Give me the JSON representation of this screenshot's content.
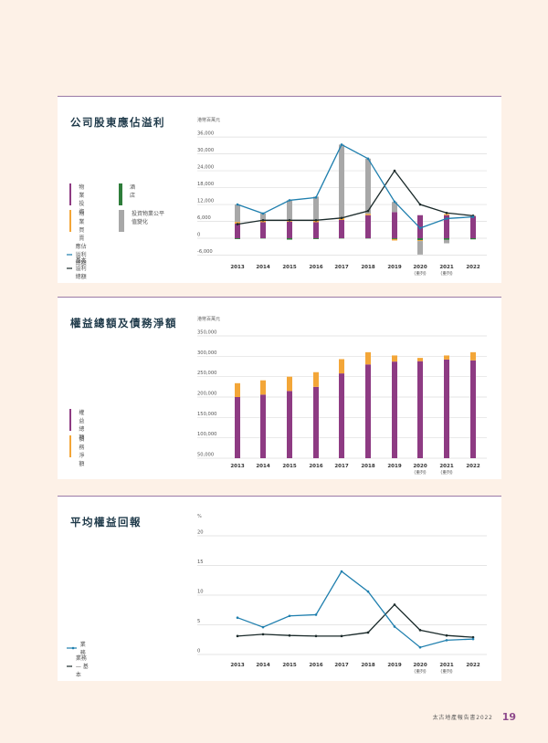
{
  "footer": {
    "report_name": "太古地產報告書2022",
    "page_number": "19"
  },
  "colors": {
    "property_investment": "#8e3b83",
    "hotels": "#2e7d3a",
    "property_trading": "#f3a638",
    "fair_value": "#a8a8a8",
    "attributable_line": "#1f7fae",
    "underlying_line": "#1a2a2a",
    "gridline": "#dddddd",
    "card_border": "#9a7aa6"
  },
  "chart_data": [
    {
      "type": "bar",
      "subtype": "stacked bar with lines",
      "title": "公司股東應佔溢利",
      "unit_label": "港幣百萬元",
      "ylabel": "港幣百萬元",
      "xlabel": "",
      "ylim": [
        -6000,
        36000
      ],
      "yticks": [
        "36,000",
        "30,000",
        "24,000",
        "18,000",
        "12,000",
        "6,000",
        "0",
        "-6,000"
      ],
      "grid": true,
      "categories": [
        "2013",
        "2014",
        "2015",
        "2016",
        "2017",
        "2018",
        "2019",
        "2020",
        "2021",
        "2022"
      ],
      "category_notes": [
        "",
        "",
        "",
        "",
        "",
        "",
        "",
        "(重列)",
        "(重列)",
        ""
      ],
      "legend": [
        {
          "label": "物業投資",
          "kind": "bar"
        },
        {
          "label": "酒店",
          "kind": "bar"
        },
        {
          "label": "物業買賣",
          "kind": "bar"
        },
        {
          "label": "投資物業公平值變化",
          "kind": "bar"
        },
        {
          "label": "應佔溢利總額",
          "kind": "line"
        },
        {
          "label": "基本溢利總額",
          "kind": "line"
        }
      ],
      "legend_position": "left",
      "series": [
        {
          "name": "物業投資",
          "type": "bar",
          "values": [
            5200,
            5700,
            5900,
            5700,
            6500,
            8200,
            9300,
            8200,
            8200,
            7900
          ]
        },
        {
          "name": "酒店",
          "type": "bar",
          "values": [
            -300,
            -100,
            -500,
            -300,
            -100,
            -100,
            -300,
            -700,
            -600,
            -400
          ]
        },
        {
          "name": "物業買賣",
          "type": "bar",
          "values": [
            600,
            700,
            400,
            700,
            700,
            500,
            -500,
            -300,
            400,
            100
          ]
        },
        {
          "name": "投資物業公平值變化",
          "type": "bar",
          "values": [
            6200,
            2400,
            7200,
            8400,
            26100,
            19600,
            3600,
            -4800,
            -1200,
            0
          ]
        },
        {
          "name": "應佔溢利總額",
          "type": "line",
          "values": [
            12000,
            8800,
            13500,
            14500,
            33300,
            28300,
            13000,
            3600,
            7000,
            7600
          ]
        },
        {
          "name": "基本溢利總額",
          "type": "line",
          "values": [
            5000,
            6400,
            6400,
            6400,
            7200,
            9700,
            24000,
            12000,
            9000,
            8000
          ]
        }
      ]
    },
    {
      "type": "bar",
      "subtype": "stacked bar",
      "title": "權益總額及債務淨額",
      "unit_label": "港幣百萬元",
      "ylabel": "港幣百萬元",
      "xlabel": "",
      "ylim": [
        50000,
        350000
      ],
      "yticks": [
        "350,000",
        "300,000",
        "250,000",
        "200,000",
        "150,000",
        "100,000",
        "50,000"
      ],
      "grid": true,
      "categories": [
        "2013",
        "2014",
        "2015",
        "2016",
        "2017",
        "2018",
        "2019",
        "2020",
        "2021",
        "2022"
      ],
      "category_notes": [
        "",
        "",
        "",
        "",
        "",
        "",
        "",
        "(重列)",
        "(重列)",
        ""
      ],
      "legend": [
        {
          "label": "權益總額",
          "kind": "bar"
        },
        {
          "label": "債務淨額",
          "kind": "bar"
        }
      ],
      "legend_position": "left",
      "series": [
        {
          "name": "權益總額",
          "values": [
            200000,
            206000,
            215000,
            225000,
            258000,
            280000,
            287000,
            288000,
            292000,
            290000
          ]
        },
        {
          "name": "債務淨額",
          "values": [
            34000,
            35000,
            35000,
            36000,
            35000,
            30000,
            15000,
            8000,
            10000,
            20000
          ]
        }
      ]
    },
    {
      "type": "line",
      "title": "平均權益回報",
      "unit_label": "%",
      "ylabel": "%",
      "xlabel": "",
      "ylim": [
        0,
        20
      ],
      "yticks": [
        "20",
        "15",
        "10",
        "5",
        "0"
      ],
      "grid": true,
      "categories": [
        "2013",
        "2014",
        "2015",
        "2016",
        "2017",
        "2018",
        "2019",
        "2020",
        "2021",
        "2022"
      ],
      "category_notes": [
        "",
        "",
        "",
        "",
        "",
        "",
        "",
        "(重列)",
        "(重列)",
        ""
      ],
      "legend": [
        {
          "label": "業務",
          "kind": "line"
        },
        {
          "label": "業務 — 基本",
          "kind": "line"
        }
      ],
      "legend_position": "left",
      "series": [
        {
          "name": "業務",
          "values": [
            6.2,
            4.6,
            6.5,
            6.7,
            14.0,
            10.6,
            4.7,
            1.2,
            2.4,
            2.6
          ]
        },
        {
          "name": "業務 — 基本",
          "values": [
            3.1,
            3.4,
            3.2,
            3.1,
            3.1,
            3.7,
            8.4,
            4.1,
            3.2,
            2.9
          ]
        }
      ]
    }
  ]
}
